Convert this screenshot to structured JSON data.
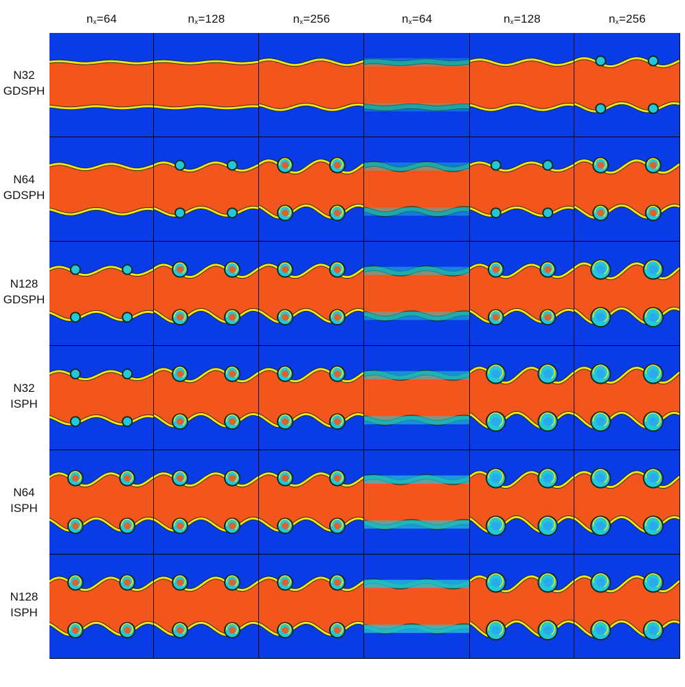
{
  "column_headers": [
    {
      "prefix": "n",
      "sub": "x",
      "value": "=64"
    },
    {
      "prefix": "n",
      "sub": "x",
      "value": "=128"
    },
    {
      "prefix": "n",
      "sub": "x",
      "value": "=256"
    },
    {
      "prefix": "n",
      "sub": "x",
      "value": "=64"
    },
    {
      "prefix": "n",
      "sub": "x",
      "value": "=128"
    },
    {
      "prefix": "n",
      "sub": "x",
      "value": "=256"
    }
  ],
  "row_headers": [
    {
      "line1": "N32",
      "line2": "GDSPH"
    },
    {
      "line1": "N64",
      "line2": "GDSPH"
    },
    {
      "line1": "N128",
      "line2": "GDSPH"
    },
    {
      "line1": "N32",
      "line2": "ISPH"
    },
    {
      "line1": "N64",
      "line2": "ISPH"
    },
    {
      "line1": "N128",
      "line2": "ISPH"
    }
  ],
  "colors": {
    "background_fluid": "#0a3ce6",
    "central_band": "#f2561c",
    "edge_yellow": "#f7e21a",
    "edge_dark": "#0c2a1e",
    "vortex_cyan": "#22c8d8",
    "vortex_core": "#2aa6f0"
  }
}
